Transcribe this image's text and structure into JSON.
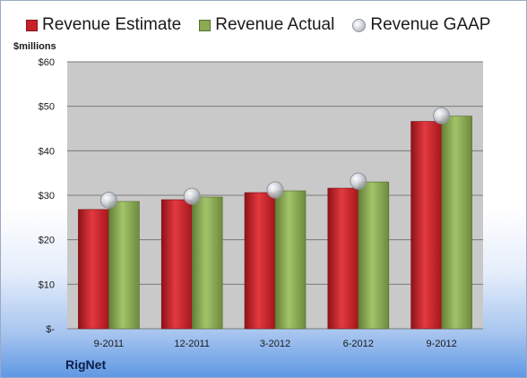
{
  "legend": {
    "estimate": "Revenue Estimate",
    "actual": "Revenue Actual",
    "gaap": "Revenue GAAP"
  },
  "units_label": "$millions",
  "company": "RigNet",
  "colors": {
    "estimate": "#c8202a",
    "actual": "#8aab52",
    "gaap": "#c5cad2",
    "plot_bg": "#c9c9c9"
  },
  "chart_data": {
    "type": "bar",
    "categories": [
      "9-2011",
      "12-2011",
      "3-2012",
      "6-2012",
      "9-2012"
    ],
    "series": [
      {
        "name": "Revenue Estimate",
        "values": [
          26.8,
          29.0,
          30.6,
          31.6,
          46.6
        ]
      },
      {
        "name": "Revenue Actual",
        "values": [
          28.6,
          29.6,
          31.0,
          33.0,
          47.8
        ]
      },
      {
        "name": "Revenue GAAP",
        "values": [
          28.9,
          29.8,
          31.2,
          33.2,
          47.9
        ]
      }
    ],
    "ylabel": "$millions",
    "ylim": [
      0,
      60
    ],
    "yticks": [
      {
        "value": 0,
        "label": "$-"
      },
      {
        "value": 10,
        "label": "$10"
      },
      {
        "value": 20,
        "label": "$20"
      },
      {
        "value": 30,
        "label": "$30"
      },
      {
        "value": 40,
        "label": "$40"
      },
      {
        "value": 50,
        "label": "$50"
      },
      {
        "value": 60,
        "label": "$60"
      }
    ],
    "grid": true,
    "legend_position": "top"
  }
}
